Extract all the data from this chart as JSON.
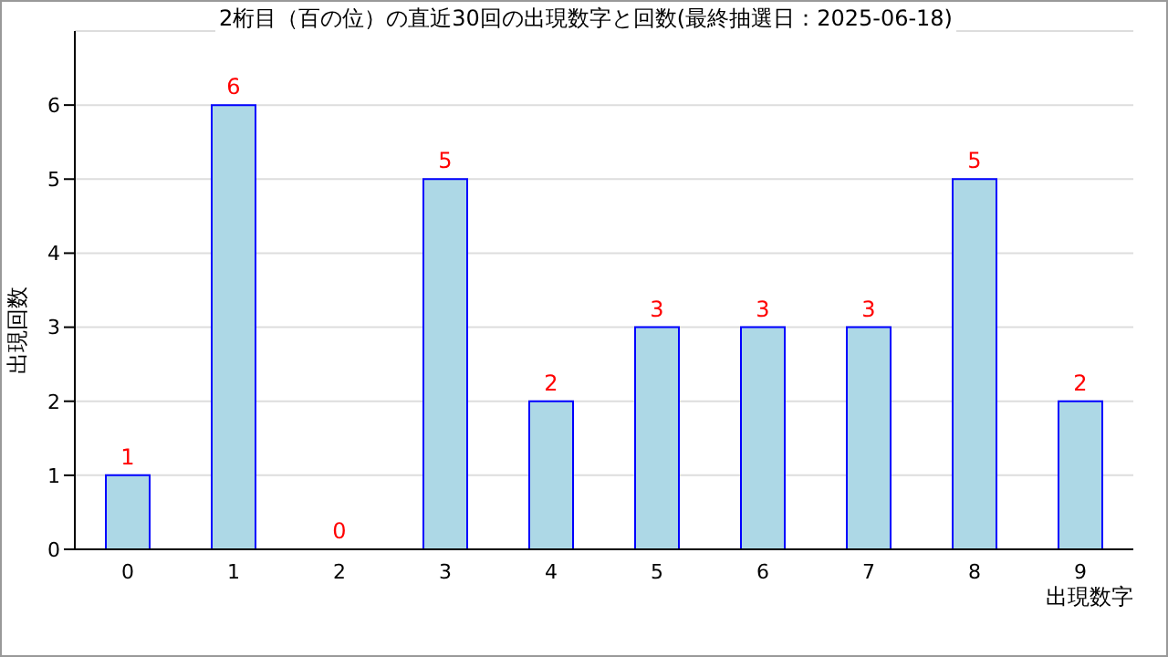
{
  "chart_data": {
    "type": "bar",
    "title": "2桁目（百の位）の直近30回の出現数字と回数(最終抽選日：2025-06-18)",
    "xlabel": "出現数字",
    "ylabel": "出現回数",
    "categories": [
      "0",
      "1",
      "2",
      "3",
      "4",
      "5",
      "6",
      "7",
      "8",
      "9"
    ],
    "series": [
      {
        "color": "#add8e6",
        "values": [
          1,
          6,
          0,
          5,
          2,
          3,
          3,
          3,
          5,
          2
        ]
      }
    ],
    "ylim": [
      0,
      7
    ],
    "yticks": [
      0,
      1,
      2,
      3,
      4,
      5,
      6
    ],
    "grid": "y",
    "data_labels": true,
    "legend": false
  }
}
